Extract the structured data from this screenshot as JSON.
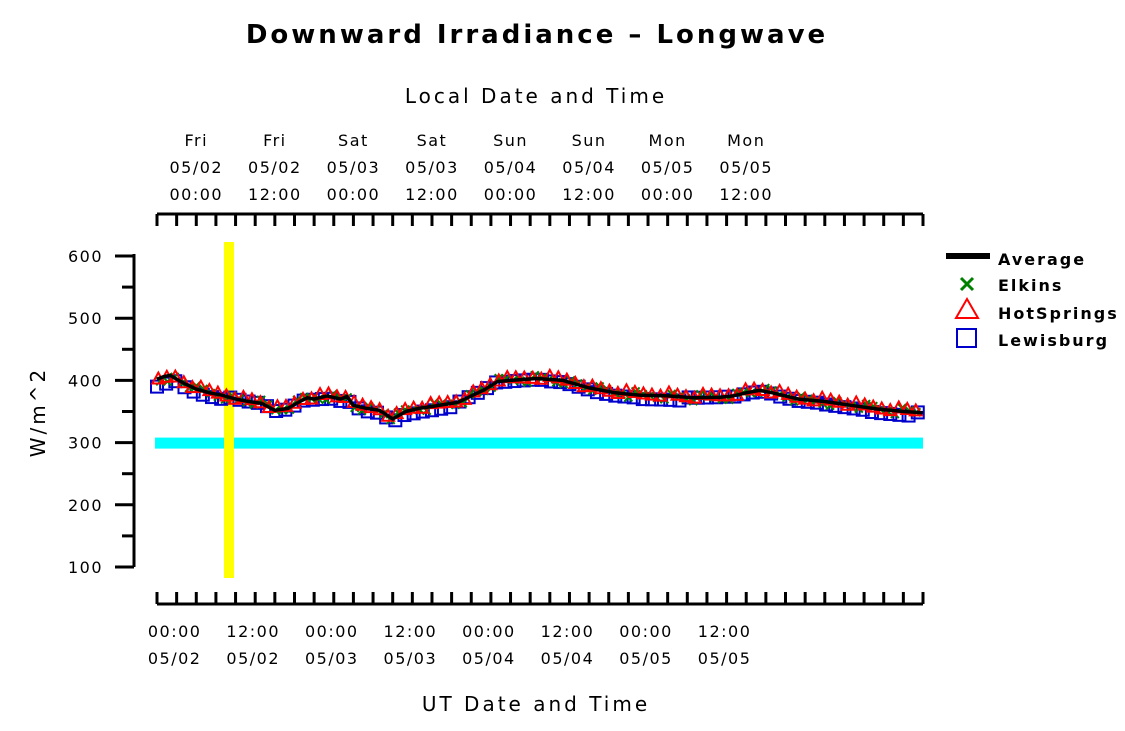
{
  "chart_data": {
    "type": "line",
    "title": "Downward Irradiance – Longwave",
    "ylabel": "W/m^2",
    "ylim": [
      100,
      600
    ],
    "yticks": [
      "600",
      "500",
      "400",
      "300",
      "200",
      "100"
    ],
    "top_axis": {
      "label": "Local Date and Time",
      "ticks": [
        {
          "day": "Fri",
          "date": "05/02",
          "time": "00:00"
        },
        {
          "day": "Fri",
          "date": "05/02",
          "time": "12:00"
        },
        {
          "day": "Sat",
          "date": "05/03",
          "time": "00:00"
        },
        {
          "day": "Sat",
          "date": "05/03",
          "time": "12:00"
        },
        {
          "day": "Sun",
          "date": "05/04",
          "time": "00:00"
        },
        {
          "day": "Sun",
          "date": "05/04",
          "time": "12:00"
        },
        {
          "day": "Mon",
          "date": "05/05",
          "time": "00:00"
        },
        {
          "day": "Mon",
          "date": "05/05",
          "time": "12:00"
        }
      ]
    },
    "bottom_axis": {
      "label": "UT Date and Time",
      "ticks": [
        {
          "time": "00:00",
          "date": "05/02"
        },
        {
          "time": "12:00",
          "date": "05/02"
        },
        {
          "time": "00:00",
          "date": "05/03"
        },
        {
          "time": "12:00",
          "date": "05/03"
        },
        {
          "time": "00:00",
          "date": "05/04"
        },
        {
          "time": "12:00",
          "date": "05/04"
        },
        {
          "time": "00:00",
          "date": "05/05"
        },
        {
          "time": "12:00",
          "date": "05/05"
        }
      ]
    },
    "x_range_ut": [
      "05/01 22:00",
      "05/05 19:00"
    ],
    "legend_position": "right",
    "series": [
      {
        "name": "Average",
        "marker": "line",
        "color": "#000000"
      },
      {
        "name": "Elkins",
        "marker": "x",
        "color": "#008000"
      },
      {
        "name": "HotSprings",
        "marker": "triangle",
        "color": "#ff0000"
      },
      {
        "name": "Lewisburg",
        "marker": "square",
        "color": "#0000cc"
      }
    ],
    "x_hours_ut": [
      -2,
      -1,
      0,
      2,
      4,
      6,
      8,
      10,
      12,
      14,
      16,
      18,
      20,
      21,
      22,
      24,
      26,
      27,
      28,
      30,
      32,
      34,
      36,
      38,
      40,
      44,
      48,
      50,
      52,
      56,
      60,
      64,
      68,
      70,
      72,
      76,
      80,
      84,
      86,
      88,
      90,
      92,
      96,
      100,
      104,
      108,
      112,
      115
    ],
    "y_values": [
      402,
      406,
      408,
      396,
      386,
      380,
      376,
      370,
      366,
      363,
      352,
      355,
      367,
      372,
      370,
      375,
      370,
      374,
      360,
      355,
      352,
      338,
      350,
      355,
      358,
      365,
      385,
      398,
      400,
      403,
      400,
      388,
      380,
      378,
      376,
      375,
      372,
      373,
      375,
      380,
      384,
      380,
      370,
      366,
      360,
      354,
      350,
      348
    ],
    "reference_band": {
      "value": 300,
      "color": "#00ffff"
    },
    "marker_time_ut": "05/02 09:00",
    "marker_color": "#ffff00"
  }
}
